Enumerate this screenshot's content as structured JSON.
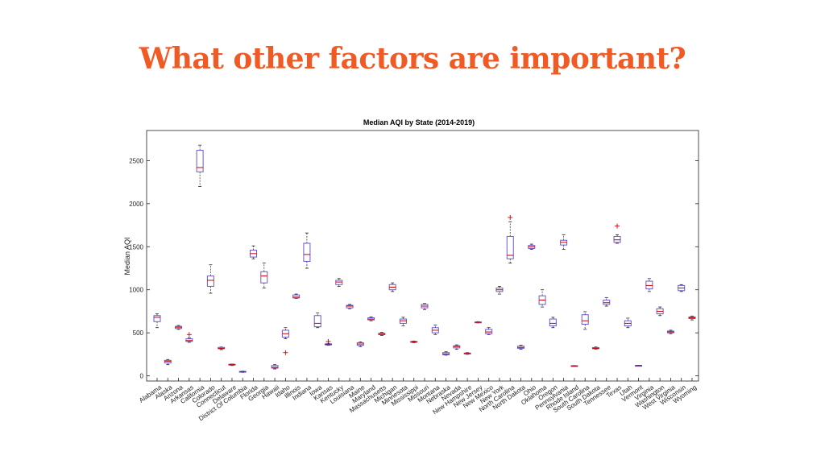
{
  "slide": {
    "title": "What other factors are important?",
    "title_color": "#f05a24"
  },
  "chart_data": {
    "type": "boxplot",
    "title": "Median AQI by State (2014-2019)",
    "xlabel": "",
    "ylabel": "Median AQI",
    "ylim": [
      -60,
      2850
    ],
    "yticks": [
      0,
      500,
      1000,
      1500,
      2000,
      2500
    ],
    "grid": false,
    "legend": "none",
    "box_color": "#6a5acd",
    "median_color": "#cc0000",
    "outlier_color": "#cc0000",
    "categories": [
      "Alabama",
      "Alaska",
      "Arizona",
      "Arkansas",
      "California",
      "Colorado",
      "Connecticut",
      "Delaware",
      "District Of Columbia",
      "Florida",
      "Georgia",
      "Hawaii",
      "Idaho",
      "Illinois",
      "Indiana",
      "Iowa",
      "Kansas",
      "Kentucky",
      "Louisiana",
      "Maine",
      "Maryland",
      "Massachusetts",
      "Michigan",
      "Minnesota",
      "Mississippi",
      "Missouri",
      "Montana",
      "Nebraska",
      "Nevada",
      "New Hampshire",
      "New Jersey",
      "New Mexico",
      "New York",
      "North Carolina",
      "North Dakota",
      "Ohio",
      "Oklahoma",
      "Oregon",
      "Pennsylvania",
      "Rhode Island",
      "South Carolina",
      "South Dakota",
      "Tennessee",
      "Texas",
      "Utah",
      "Vermont",
      "Virginia",
      "Washington",
      "West Virginia",
      "Wisconsin",
      "Wyoming"
    ],
    "boxes": [
      {
        "min": 560,
        "q1": 630,
        "median": 680,
        "q3": 700,
        "max": 720,
        "outliers": []
      },
      {
        "min": 130,
        "q1": 150,
        "median": 170,
        "q3": 180,
        "max": 190,
        "outliers": []
      },
      {
        "min": 540,
        "q1": 550,
        "median": 565,
        "q3": 575,
        "max": 585,
        "outliers": []
      },
      {
        "min": 390,
        "q1": 400,
        "median": 410,
        "q3": 430,
        "max": 440,
        "outliers": [
          480
        ]
      },
      {
        "min": 2200,
        "q1": 2370,
        "median": 2420,
        "q3": 2620,
        "max": 2680,
        "outliers": []
      },
      {
        "min": 960,
        "q1": 1040,
        "median": 1110,
        "q3": 1160,
        "max": 1290,
        "outliers": []
      },
      {
        "min": 305,
        "q1": 315,
        "median": 320,
        "q3": 330,
        "max": 335,
        "outliers": []
      },
      {
        "min": 120,
        "q1": 125,
        "median": 130,
        "q3": 135,
        "max": 138,
        "outliers": []
      },
      {
        "min": 40,
        "q1": 45,
        "median": 48,
        "q3": 52,
        "max": 55,
        "outliers": []
      },
      {
        "min": 1360,
        "q1": 1380,
        "median": 1420,
        "q3": 1460,
        "max": 1510,
        "outliers": []
      },
      {
        "min": 1020,
        "q1": 1080,
        "median": 1160,
        "q3": 1210,
        "max": 1310,
        "outliers": []
      },
      {
        "min": 80,
        "q1": 90,
        "median": 100,
        "q3": 120,
        "max": 130,
        "outliers": []
      },
      {
        "min": 430,
        "q1": 450,
        "median": 490,
        "q3": 530,
        "max": 560,
        "outliers": [
          270
        ]
      },
      {
        "min": 900,
        "q1": 905,
        "median": 915,
        "q3": 940,
        "max": 950,
        "outliers": []
      },
      {
        "min": 1250,
        "q1": 1330,
        "median": 1410,
        "q3": 1540,
        "max": 1660,
        "outliers": []
      },
      {
        "min": 560,
        "q1": 570,
        "median": 610,
        "q3": 700,
        "max": 730,
        "outliers": []
      },
      {
        "min": 355,
        "q1": 360,
        "median": 365,
        "q3": 372,
        "max": 378,
        "outliers": [
          400
        ]
      },
      {
        "min": 1040,
        "q1": 1060,
        "median": 1090,
        "q3": 1110,
        "max": 1130,
        "outliers": []
      },
      {
        "min": 780,
        "q1": 790,
        "median": 810,
        "q3": 820,
        "max": 830,
        "outliers": []
      },
      {
        "min": 340,
        "q1": 355,
        "median": 370,
        "q3": 385,
        "max": 395,
        "outliers": []
      },
      {
        "min": 640,
        "q1": 650,
        "median": 660,
        "q3": 675,
        "max": 685,
        "outliers": []
      },
      {
        "min": 470,
        "q1": 478,
        "median": 485,
        "q3": 495,
        "max": 505,
        "outliers": []
      },
      {
        "min": 980,
        "q1": 1000,
        "median": 1030,
        "q3": 1060,
        "max": 1080,
        "outliers": []
      },
      {
        "min": 580,
        "q1": 610,
        "median": 640,
        "q3": 660,
        "max": 680,
        "outliers": []
      },
      {
        "min": 385,
        "q1": 390,
        "median": 395,
        "q3": 400,
        "max": 405,
        "outliers": []
      },
      {
        "min": 770,
        "q1": 790,
        "median": 810,
        "q3": 830,
        "max": 840,
        "outliers": []
      },
      {
        "min": 480,
        "q1": 500,
        "median": 530,
        "q3": 560,
        "max": 590,
        "outliers": []
      },
      {
        "min": 240,
        "q1": 245,
        "median": 255,
        "q3": 270,
        "max": 280,
        "outliers": []
      },
      {
        "min": 310,
        "q1": 325,
        "median": 340,
        "q3": 350,
        "max": 360,
        "outliers": []
      },
      {
        "min": 250,
        "q1": 255,
        "median": 260,
        "q3": 265,
        "max": 270,
        "outliers": []
      },
      {
        "min": 615,
        "q1": 618,
        "median": 622,
        "q3": 626,
        "max": 630,
        "outliers": []
      },
      {
        "min": 480,
        "q1": 490,
        "median": 510,
        "q3": 540,
        "max": 560,
        "outliers": []
      },
      {
        "min": 950,
        "q1": 980,
        "median": 1000,
        "q3": 1020,
        "max": 1040,
        "outliers": []
      },
      {
        "min": 1310,
        "q1": 1360,
        "median": 1400,
        "q3": 1620,
        "max": 1790,
        "outliers": [
          1840
        ]
      },
      {
        "min": 310,
        "q1": 320,
        "median": 330,
        "q3": 345,
        "max": 355,
        "outliers": []
      },
      {
        "min": 1470,
        "q1": 1480,
        "median": 1500,
        "q3": 1515,
        "max": 1530,
        "outliers": []
      },
      {
        "min": 800,
        "q1": 830,
        "median": 880,
        "q3": 930,
        "max": 1000,
        "outliers": []
      },
      {
        "min": 560,
        "q1": 580,
        "median": 610,
        "q3": 660,
        "max": 680,
        "outliers": []
      },
      {
        "min": 1470,
        "q1": 1520,
        "median": 1550,
        "q3": 1575,
        "max": 1640,
        "outliers": []
      },
      {
        "min": 110,
        "q1": 112,
        "median": 115,
        "q3": 118,
        "max": 120,
        "outliers": []
      },
      {
        "min": 540,
        "q1": 600,
        "median": 640,
        "q3": 710,
        "max": 745,
        "outliers": []
      },
      {
        "min": 310,
        "q1": 315,
        "median": 320,
        "q3": 328,
        "max": 335,
        "outliers": []
      },
      {
        "min": 810,
        "q1": 830,
        "median": 850,
        "q3": 880,
        "max": 910,
        "outliers": []
      },
      {
        "min": 1540,
        "q1": 1550,
        "median": 1580,
        "q3": 1620,
        "max": 1640,
        "outliers": [
          1740
        ]
      },
      {
        "min": 560,
        "q1": 580,
        "median": 610,
        "q3": 640,
        "max": 670,
        "outliers": []
      },
      {
        "min": 118,
        "q1": 119,
        "median": 120,
        "q3": 121,
        "max": 122,
        "outliers": []
      },
      {
        "min": 980,
        "q1": 1010,
        "median": 1050,
        "q3": 1100,
        "max": 1130,
        "outliers": []
      },
      {
        "min": 700,
        "q1": 720,
        "median": 750,
        "q3": 780,
        "max": 800,
        "outliers": []
      },
      {
        "min": 490,
        "q1": 500,
        "median": 510,
        "q3": 520,
        "max": 530,
        "outliers": []
      },
      {
        "min": 980,
        "q1": 990,
        "median": 1020,
        "q3": 1050,
        "max": 1060,
        "outliers": []
      },
      {
        "min": 650,
        "q1": 665,
        "median": 675,
        "q3": 685,
        "max": 695,
        "outliers": []
      }
    ]
  }
}
